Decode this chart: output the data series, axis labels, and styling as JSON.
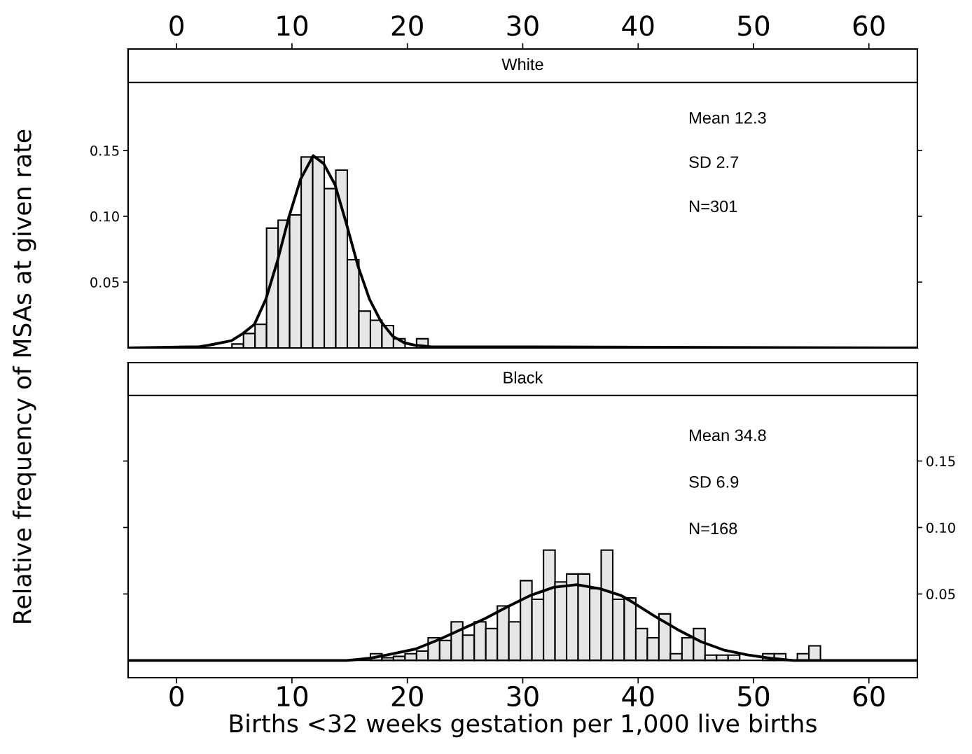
{
  "chart_data": [
    {
      "type": "histogram",
      "title": "White",
      "ylabel": "Relative frequency of MSAs at given rate",
      "annotations": [
        "Mean 12.3",
        "SD 2.7",
        "N=301"
      ],
      "series": [
        {
          "color": "#e6e6e6",
          "bins": [
            4.8,
            5.8,
            6.8,
            7.8,
            8.8,
            9.8,
            10.8,
            11.8,
            12.8,
            13.8,
            14.8,
            15.8,
            16.8,
            17.8,
            18.8,
            19.8,
            20.8,
            21.8
          ],
          "values": [
            0.003,
            0.011,
            0.018,
            0.091,
            0.097,
            0.101,
            0.145,
            0.145,
            0.121,
            0.135,
            0.067,
            0.028,
            0.021,
            0.017,
            0.007,
            null,
            0.007
          ]
        },
        {
          "type": "line",
          "color": "#000000",
          "x": [
            -4.2,
            2,
            2.75,
            4.75,
            5.75,
            6.75,
            7.74,
            8.74,
            9.74,
            10.74,
            11.84,
            12.74,
            13.73,
            14.73,
            15.73,
            16.72,
            17.72,
            18.72,
            19.72,
            20.72,
            22,
            64.2
          ],
          "values": [
            0,
            0.001,
            0.002,
            0.0055,
            0.011,
            0.018,
            0.037,
            0.066,
            0.0995,
            0.128,
            0.146,
            0.14,
            0.124,
            0.094,
            0.062,
            0.037,
            0.02,
            0.009,
            0.004,
            0.002,
            0.001,
            0
          ]
        }
      ],
      "xlim": [
        -4.2,
        64.2
      ],
      "xticks": [
        0,
        10,
        20,
        30,
        40,
        50,
        60
      ],
      "ylim": [
        0,
        0.227
      ],
      "yticks": [
        {
          "value": 0.05,
          "label": "0.05"
        },
        {
          "value": 0.1,
          "label": "0.10"
        },
        {
          "value": 0.15,
          "label": "0.15"
        }
      ],
      "legend": false,
      "grid": false
    },
    {
      "type": "histogram",
      "title": "Black",
      "xlabel": "Births <32 weeks gestation per 1,000 live births",
      "annotations": [
        "Mean 34.8",
        "SD 6.9",
        "N=168"
      ],
      "series": [
        {
          "color": "#e6e6e6",
          "bins": [
            16.8,
            17.8,
            18.8,
            19.8,
            20.8,
            21.8,
            22.8,
            23.8,
            24.8,
            25.8,
            26.8,
            27.8,
            28.8,
            29.8,
            30.8,
            31.8,
            32.8,
            33.8,
            34.8,
            35.8,
            36.8,
            37.8,
            38.8,
            39.8,
            40.8,
            41.8,
            42.8,
            43.8,
            44.8,
            45.8,
            46.8,
            47.8,
            48.8,
            49.8,
            50.8,
            51.8,
            52.8,
            53.8,
            54.8,
            55.8
          ],
          "values": [
            0.005,
            0.002,
            0.003,
            0.005,
            0.007,
            0.017,
            0.015,
            0.029,
            0.019,
            0.029,
            0.024,
            0.041,
            0.029,
            0.06,
            0.046,
            0.083,
            0.059,
            0.065,
            0.065,
            0.054,
            0.083,
            0.046,
            0.047,
            0.024,
            0.017,
            0.035,
            0.005,
            0.017,
            0.024,
            0.004,
            0.004,
            0.004,
            null,
            null,
            0.005,
            0.005,
            null,
            0.005,
            0.011
          ]
        },
        {
          "type": "line",
          "color": "#000000",
          "x": [
            -4.2,
            10,
            14.73,
            16.73,
            18.72,
            20.72,
            22.71,
            24.71,
            26.71,
            28.7,
            30.7,
            32.69,
            34.69,
            36.69,
            38.48,
            39.48,
            41.48,
            43.47,
            45.47,
            47.47,
            49.46,
            51.46,
            53.45,
            64.2
          ],
          "values": [
            0,
            0,
            0,
            0.0016,
            0.005,
            0.0086,
            0.0156,
            0.0235,
            0.0314,
            0.0405,
            0.049,
            0.055,
            0.057,
            0.054,
            0.049,
            0.044,
            0.033,
            0.023,
            0.014,
            0.0077,
            0.0042,
            0.0016,
            0,
            0
          ]
        }
      ],
      "xlim": [
        -4.2,
        64.2
      ],
      "xticks": [
        0,
        10,
        20,
        30,
        40,
        50,
        60
      ],
      "ylim": [
        -0.013,
        0.224
      ],
      "yticks": [
        {
          "value": 0.05,
          "label": "0.05"
        },
        {
          "value": 0.1,
          "label": "0.10"
        },
        {
          "value": 0.15,
          "label": "0.15"
        }
      ],
      "ref_lines": [
        {
          "axis": "y",
          "value": 0,
          "color": "#000000"
        }
      ],
      "legend": false,
      "grid": false
    }
  ]
}
